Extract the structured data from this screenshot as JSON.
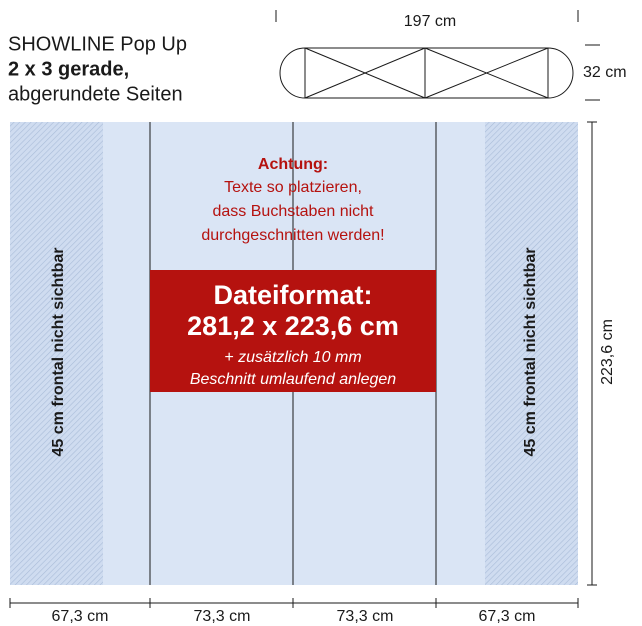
{
  "header": {
    "lines": [
      "SHOWLINE Pop Up",
      "2 x 3 gerade,",
      "abgerundete Seiten"
    ]
  },
  "top_view": {
    "width_label": "197 cm",
    "depth_label": "32 cm"
  },
  "panel": {
    "warning": {
      "title": "Achtung:",
      "lines": [
        "Texte so platzieren,",
        "dass Buchstaben nicht",
        "durchgeschnitten werden!"
      ]
    },
    "format": {
      "title": "Dateiformat:",
      "size": "281,2 x 223,6 cm",
      "note": [
        "+ zusätzlich 10 mm",
        "Beschnitt umlaufend anlegen"
      ]
    },
    "side_labels": [
      "45 cm frontal nicht sichtbar",
      "45 cm frontal nicht sichtbar"
    ]
  },
  "height_label": "223,6 cm",
  "width_labels": [
    "67,3 cm",
    "73,3 cm",
    "73,3 cm",
    "67,3 cm"
  ]
}
